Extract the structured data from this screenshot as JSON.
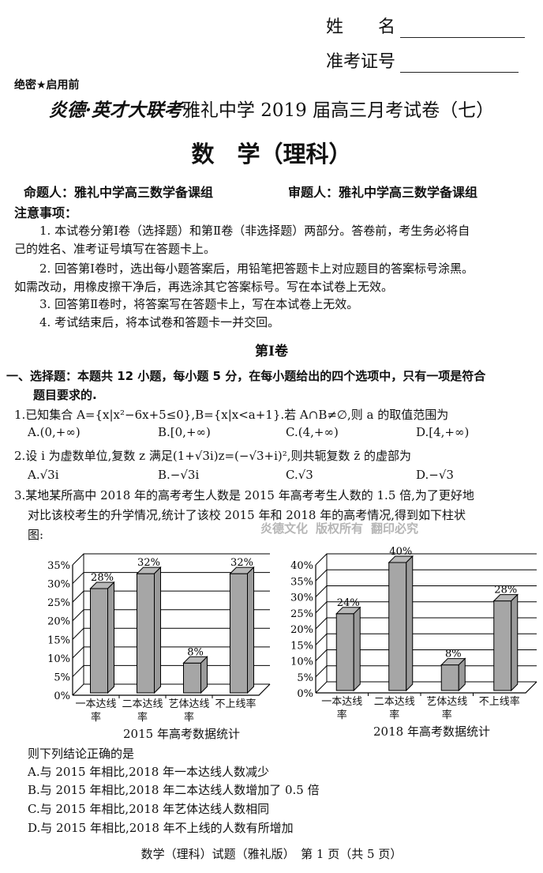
{
  "header": {
    "name_label": "姓　　名",
    "exam_id_label": "准考证号",
    "secret_label": "绝密★启用前",
    "title_brand": "炎德·英才大联考",
    "title_rest": "雅礼中学 2019 届高三月考试卷（七）",
    "subject": "数　学（理科）",
    "setter": "命题人：雅礼中学高三数学备课组",
    "reviewer": "审题人：雅礼中学高三数学备课组"
  },
  "notice": {
    "heading": "注意事项：",
    "items": [
      "1. 本试卷分第Ⅰ卷（选择题）和第Ⅱ卷（非选择题）两部分。答卷前，考生务必将自",
      "己的姓名、准考证号填写在答题卡上。",
      "2. 回答第Ⅰ卷时，选出每小题答案后，用铅笔把答题卡上对应题目的答案标号涂黑。",
      "如需改动，用橡皮擦干净后，再选涂其它答案标号。写在本试卷上无效。",
      "3. 回答第Ⅱ卷时，将答案写在答题卡上，写在本试卷上无效。",
      "4. 考试结束后，将本试卷和答题卡一并交回。"
    ]
  },
  "section": {
    "title": "第Ⅰ卷",
    "intro_1": "一、选择题：本题共 12 小题，每小题 5 分，在每小题给出的四个选项中，只有一项是符合",
    "intro_2": "题目要求的."
  },
  "watermark": [
    "炎德文化",
    "版权所有",
    "翻印必究"
  ],
  "questions": [
    {
      "stem": "1.已知集合 A={x|x²−6x+5≤0},B={x|x<a+1}.若 A∩B≠∅,则 a 的取值范围为",
      "options": [
        "A.(0,+∞)",
        "B.[0,+∞)",
        "C.(4,+∞)",
        "D.[4,+∞)"
      ]
    },
    {
      "stem": "2.设 i 为虚数单位,复数 z 满足(1+√3i)z=(−√3+i)²,则共轭复数 z̄ 的虚部为",
      "options": [
        "A.√3i",
        "B.−√3i",
        "C.√3",
        "D.−√3"
      ]
    },
    {
      "stem_lines": [
        "3.某地某所高中 2018 年的高考考生人数是 2015 年高考考生人数的 1.5 倍,为了更好地",
        "对比该校考生的升学情况,统计了该校 2015 年和 2018 年的高考情况,得到如下柱状",
        "图:"
      ],
      "prompt": "则下列结论正确的是",
      "options": [
        "A.与 2015 年相比,2018 年一本达线人数减少",
        "B.与 2015 年相比,2018 年二本达线人数增加了 0.5 倍",
        "C.与 2015 年相比,2018 年艺体达线人数相同",
        "D.与 2015 年相比,2018 年不上线的人数有所增加"
      ]
    }
  ],
  "chart_data": [
    {
      "type": "bar",
      "title": "2015 年高考数据统计",
      "categories": [
        "一本达线率",
        "二本达线率",
        "艺体达线率",
        "不上线率"
      ],
      "values": [
        28,
        32,
        8,
        32
      ],
      "data_labels": [
        "28%",
        "32%",
        "8%",
        "32%"
      ],
      "ylim": [
        0,
        35
      ],
      "yticks": [
        "0%",
        "5%",
        "10%",
        "15%",
        "20%",
        "25%",
        "30%",
        "35%"
      ],
      "grid": true,
      "style": "3d",
      "bar_color": "#a6a6a6"
    },
    {
      "type": "bar",
      "title": "2018 年高考数据统计",
      "categories": [
        "一本达线率",
        "二本达线率",
        "艺体达线率",
        "不上线率"
      ],
      "values": [
        24,
        40,
        8,
        28
      ],
      "data_labels": [
        "24%",
        "40%",
        "8%",
        "28%"
      ],
      "ylim": [
        0,
        40
      ],
      "yticks": [
        "0%",
        "5%",
        "10%",
        "15%",
        "20%",
        "25%",
        "30%",
        "35%",
        "40%"
      ],
      "grid": true,
      "style": "3d",
      "bar_color": "#a6a6a6"
    }
  ],
  "footer": "数学（理科）试题（雅礼版）　第 1 页（共 5 页）"
}
